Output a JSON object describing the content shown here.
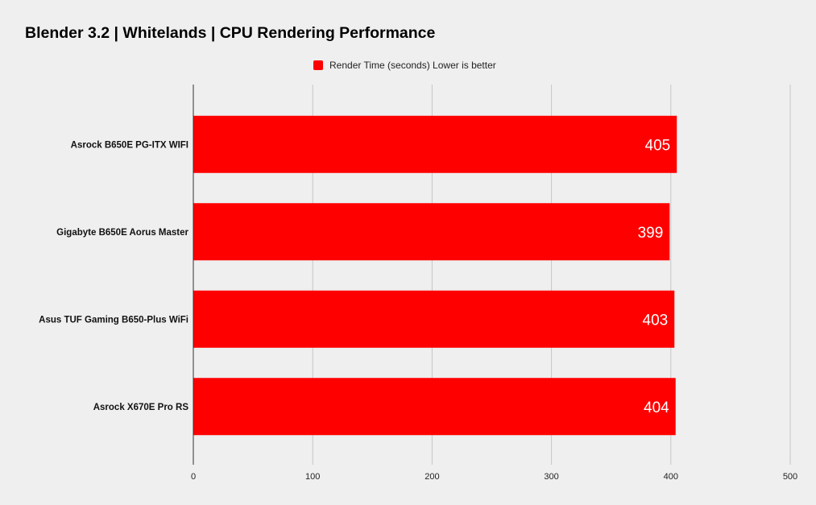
{
  "chart_data": {
    "type": "bar",
    "orientation": "horizontal",
    "title": "Blender 3.2 | Whitelands | CPU Rendering Performance",
    "categories": [
      "Asrock B650E PG-ITX WIFI",
      "Gigabyte B650E Aorus Master",
      "Asus TUF Gaming B650-Plus WiFi",
      "Asrock X670E Pro RS"
    ],
    "series": [
      {
        "name": "Render Time (seconds) Lower is better",
        "values": [
          405,
          399,
          403,
          404
        ],
        "color": "#ff0000"
      }
    ],
    "xlim": [
      0,
      500
    ],
    "x_ticks": [
      0,
      100,
      200,
      300,
      400,
      500
    ],
    "xlabel": "",
    "ylabel": "",
    "grid": true,
    "legend_position": "top",
    "data_labels": true
  }
}
